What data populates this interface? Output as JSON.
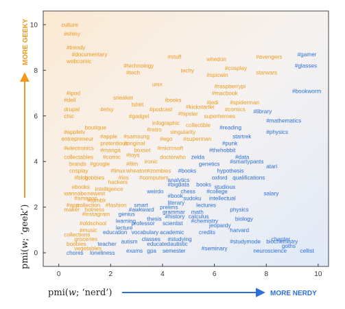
{
  "chart_data": {
    "type": "scatter",
    "xlabel_parts": [
      "pmi(",
      "w",
      "; ‘nerd’)"
    ],
    "ylabel_parts": [
      "pmi(",
      "w",
      "; ‘geek’)"
    ],
    "x_direction_label": "MORE NERDY",
    "y_direction_label": "MORE GEEKY",
    "xlim": [
      -0.6,
      10.4
    ],
    "ylim": [
      -0.6,
      10.6
    ],
    "x_ticks": [
      0,
      2,
      4,
      6,
      8,
      10
    ],
    "y_ticks": [
      0,
      2,
      4,
      6,
      8,
      10
    ],
    "grid": false,
    "colors": {
      "geeky": "#ef9a1d",
      "nerdy": "#2a6fdb",
      "axis": "#333333"
    },
    "points": [
      {
        "text": "culture",
        "x": 0.1,
        "y": 10.0,
        "group": "geeky"
      },
      {
        "text": "#shiny",
        "x": 0.2,
        "y": 9.6,
        "group": "geeky"
      },
      {
        "text": "#trendy",
        "x": 0.3,
        "y": 9.0,
        "group": "geeky"
      },
      {
        "text": "#documentary",
        "x": 0.5,
        "y": 8.7,
        "group": "geeky"
      },
      {
        "text": "webcomic",
        "x": 0.3,
        "y": 8.4,
        "group": "geeky"
      },
      {
        "text": "#technology",
        "x": 2.5,
        "y": 8.2,
        "group": "geeky"
      },
      {
        "text": "#tech",
        "x": 2.6,
        "y": 7.9,
        "group": "geeky"
      },
      {
        "text": "#stuff",
        "x": 4.2,
        "y": 8.6,
        "group": "geeky"
      },
      {
        "text": "whedon",
        "x": 5.7,
        "y": 8.5,
        "group": "geeky"
      },
      {
        "text": "#avengers",
        "x": 7.6,
        "y": 8.6,
        "group": "geeky"
      },
      {
        "text": "#gamer",
        "x": 9.2,
        "y": 8.7,
        "group": "nerdy"
      },
      {
        "text": "#glasses",
        "x": 9.1,
        "y": 8.2,
        "group": "nerdy"
      },
      {
        "text": "techy",
        "x": 4.7,
        "y": 8.0,
        "group": "geeky"
      },
      {
        "text": "#cosplay",
        "x": 6.4,
        "y": 8.1,
        "group": "geeky"
      },
      {
        "text": "#spicwin",
        "x": 5.7,
        "y": 7.8,
        "group": "geeky"
      },
      {
        "text": "starwars",
        "x": 7.6,
        "y": 7.9,
        "group": "geeky"
      },
      {
        "text": "unix",
        "x": 3.6,
        "y": 7.4,
        "group": "geeky"
      },
      {
        "text": "#raspberrypi",
        "x": 6.0,
        "y": 7.3,
        "group": "geeky"
      },
      {
        "text": "#macbook",
        "x": 5.9,
        "y": 7.0,
        "group": "geeky"
      },
      {
        "text": "#bookworm",
        "x": 9.0,
        "y": 7.1,
        "group": "nerdy"
      },
      {
        "text": "#ipod",
        "x": 0.3,
        "y": 7.0,
        "group": "geeky"
      },
      {
        "text": "#dell",
        "x": 0.2,
        "y": 6.7,
        "group": "geeky"
      },
      {
        "text": "sneaker",
        "x": 2.1,
        "y": 6.8,
        "group": "geeky"
      },
      {
        "text": "ibooks",
        "x": 4.1,
        "y": 6.7,
        "group": "geeky"
      },
      {
        "text": "tshirt",
        "x": 2.8,
        "y": 6.5,
        "group": "geeky"
      },
      {
        "text": "#jedi",
        "x": 5.7,
        "y": 6.6,
        "group": "geeky"
      },
      {
        "text": "#spiderman",
        "x": 6.6,
        "y": 6.6,
        "group": "geeky"
      },
      {
        "text": "drupal",
        "x": 0.2,
        "y": 6.3,
        "group": "geeky"
      },
      {
        "text": "#etsy",
        "x": 1.6,
        "y": 6.3,
        "group": "geeky"
      },
      {
        "text": "#podcast",
        "x": 3.5,
        "y": 6.3,
        "group": "geeky"
      },
      {
        "text": "#kickstarter",
        "x": 4.9,
        "y": 6.4,
        "group": "geeky"
      },
      {
        "text": "#comics",
        "x": 6.4,
        "y": 6.3,
        "group": "geeky"
      },
      {
        "text": "#library",
        "x": 7.5,
        "y": 6.2,
        "group": "nerdy"
      },
      {
        "text": "chic",
        "x": 0.2,
        "y": 6.0,
        "group": "geeky"
      },
      {
        "text": "#gadget",
        "x": 2.7,
        "y": 6.0,
        "group": "geeky"
      },
      {
        "text": "#hipster",
        "x": 4.6,
        "y": 6.1,
        "group": "geeky"
      },
      {
        "text": "superheroes",
        "x": 5.6,
        "y": 6.0,
        "group": "geeky"
      },
      {
        "text": "#mathematics",
        "x": 8.0,
        "y": 5.8,
        "group": "nerdy"
      },
      {
        "text": "infographic",
        "x": 3.6,
        "y": 5.7,
        "group": "geeky"
      },
      {
        "text": "collectible",
        "x": 4.9,
        "y": 5.6,
        "group": "geeky"
      },
      {
        "text": "boutique",
        "x": 1.0,
        "y": 5.5,
        "group": "geeky"
      },
      {
        "text": "#retro",
        "x": 3.4,
        "y": 5.4,
        "group": "geeky"
      },
      {
        "text": "singularity",
        "x": 4.3,
        "y": 5.3,
        "group": "geeky"
      },
      {
        "text": "#reading",
        "x": 6.2,
        "y": 5.5,
        "group": "nerdy"
      },
      {
        "text": "#appletv",
        "x": 0.2,
        "y": 5.3,
        "group": "geeky"
      },
      {
        "text": "#physics",
        "x": 8.0,
        "y": 5.3,
        "group": "nerdy"
      },
      {
        "text": "startrek",
        "x": 6.7,
        "y": 5.1,
        "group": "nerdy"
      },
      {
        "text": "entrepreneur",
        "x": 0.1,
        "y": 5.0,
        "group": "geeky"
      },
      {
        "text": "#apple",
        "x": 1.6,
        "y": 5.1,
        "group": "geeky"
      },
      {
        "text": "#samsung",
        "x": 2.5,
        "y": 5.1,
        "group": "geeky"
      },
      {
        "text": "#ego",
        "x": 3.9,
        "y": 5.0,
        "group": "geeky"
      },
      {
        "text": "#superman",
        "x": 4.8,
        "y": 5.0,
        "group": "geeky"
      },
      {
        "text": "pretentious",
        "x": 1.6,
        "y": 4.8,
        "group": "geeky"
      },
      {
        "text": "#original",
        "x": 2.5,
        "y": 4.8,
        "group": "geeky"
      },
      {
        "text": "#punk",
        "x": 6.3,
        "y": 4.8,
        "group": "nerdy"
      },
      {
        "text": "#electronics",
        "x": 0.2,
        "y": 4.6,
        "group": "geeky"
      },
      {
        "text": "#manga",
        "x": 1.6,
        "y": 4.5,
        "group": "geeky"
      },
      {
        "text": "boxset",
        "x": 2.9,
        "y": 4.5,
        "group": "geeky"
      },
      {
        "text": "#microsoft",
        "x": 3.8,
        "y": 4.6,
        "group": "geeky"
      },
      {
        "text": "#thehobbit",
        "x": 5.8,
        "y": 4.5,
        "group": "nerdy"
      },
      {
        "text": "collectables",
        "x": 0.2,
        "y": 4.2,
        "group": "geeky"
      },
      {
        "text": "#comic",
        "x": 1.7,
        "y": 4.2,
        "group": "geeky"
      },
      {
        "text": "#toys",
        "x": 2.6,
        "y": 4.3,
        "group": "geeky"
      },
      {
        "text": "zelda",
        "x": 5.1,
        "y": 4.2,
        "group": "nerdy"
      },
      {
        "text": "#data",
        "x": 6.8,
        "y": 4.2,
        "group": "nerdy"
      },
      {
        "text": "brands",
        "x": 0.4,
        "y": 3.9,
        "group": "geeky"
      },
      {
        "text": "#google",
        "x": 1.2,
        "y": 3.9,
        "group": "geeky"
      },
      {
        "text": "ironic",
        "x": 3.3,
        "y": 4.0,
        "group": "geeky"
      },
      {
        "text": "doctorwho",
        "x": 3.9,
        "y": 4.2,
        "group": "geeky"
      },
      {
        "text": "genetics",
        "x": 5.4,
        "y": 3.9,
        "group": "nerdy"
      },
      {
        "text": "#smartypants",
        "x": 6.6,
        "y": 4.0,
        "group": "nerdy"
      },
      {
        "text": "atari",
        "x": 8.0,
        "y": 3.8,
        "group": "nerdy"
      },
      {
        "text": "#film",
        "x": 2.6,
        "y": 3.9,
        "group": "geeky"
      },
      {
        "text": "cosplay",
        "x": 0.4,
        "y": 3.6,
        "group": "geeky"
      },
      {
        "text": "#linux",
        "x": 2.0,
        "y": 3.6,
        "group": "geeky"
      },
      {
        "text": "wheaton",
        "x": 2.6,
        "y": 3.6,
        "group": "geeky"
      },
      {
        "text": "#zombies",
        "x": 3.4,
        "y": 3.6,
        "group": "geeky"
      },
      {
        "text": "#books",
        "x": 4.6,
        "y": 3.6,
        "group": "nerdy"
      },
      {
        "text": "hypothesis",
        "x": 6.1,
        "y": 3.6,
        "group": "nerdy"
      },
      {
        "text": "#blog",
        "x": 0.6,
        "y": 3.3,
        "group": "geeky"
      },
      {
        "text": "hobbies",
        "x": 1.0,
        "y": 3.3,
        "group": "geeky"
      },
      {
        "text": "#ios",
        "x": 2.3,
        "y": 3.3,
        "group": "geeky"
      },
      {
        "text": "#computers",
        "x": 3.1,
        "y": 3.3,
        "group": "geeky"
      },
      {
        "text": "analytics",
        "x": 4.2,
        "y": 3.2,
        "group": "nerdy"
      },
      {
        "text": "oxford",
        "x": 5.9,
        "y": 3.3,
        "group": "nerdy"
      },
      {
        "text": "qualifications",
        "x": 6.7,
        "y": 3.3,
        "group": "nerdy"
      },
      {
        "text": "hackers",
        "x": 1.9,
        "y": 3.1,
        "group": "geeky"
      },
      {
        "text": "ebooks",
        "x": 0.5,
        "y": 2.9,
        "group": "geeky"
      },
      {
        "text": "intelligence",
        "x": 1.4,
        "y": 2.8,
        "group": "geeky"
      },
      {
        "text": "#bigdata",
        "x": 4.2,
        "y": 3.0,
        "group": "nerdy"
      },
      {
        "text": "books",
        "x": 5.3,
        "y": 3.0,
        "group": "nerdy"
      },
      {
        "text": "studious",
        "x": 6.0,
        "y": 2.9,
        "group": "nerdy"
      },
      {
        "text": "wannabe",
        "x": 0.2,
        "y": 2.6,
        "group": "geeky"
      },
      {
        "text": "newest",
        "x": 1.1,
        "y": 2.6,
        "group": "geeky"
      },
      {
        "text": "weirdo",
        "x": 3.4,
        "y": 2.7,
        "group": "nerdy"
      },
      {
        "text": "chess",
        "x": 4.7,
        "y": 2.7,
        "group": "nerdy"
      },
      {
        "text": "#college",
        "x": 5.7,
        "y": 2.7,
        "group": "nerdy"
      },
      {
        "text": "salary",
        "x": 7.9,
        "y": 2.6,
        "group": "nerdy"
      },
      {
        "text": "#amazon",
        "x": 0.6,
        "y": 2.4,
        "group": "geeky"
      },
      {
        "text": "#tumblr",
        "x": 1.1,
        "y": 2.3,
        "group": "geeky"
      },
      {
        "text": "#book",
        "x": 4.2,
        "y": 2.5,
        "group": "nerdy"
      },
      {
        "text": "sudoku",
        "x": 4.8,
        "y": 2.4,
        "group": "nerdy"
      },
      {
        "text": "intellectual",
        "x": 5.8,
        "y": 2.4,
        "group": "nerdy"
      },
      {
        "text": "#app",
        "x": 0.3,
        "y": 2.1,
        "group": "geeky"
      },
      {
        "text": "collection",
        "x": 0.7,
        "y": 2.1,
        "group": "geeky"
      },
      {
        "text": "#fashion",
        "x": 1.8,
        "y": 2.1,
        "group": "geeky"
      },
      {
        "text": "smart",
        "x": 2.9,
        "y": 2.1,
        "group": "nerdy"
      },
      {
        "text": "literary",
        "x": 4.2,
        "y": 2.2,
        "group": "nerdy"
      },
      {
        "text": "lectures",
        "x": 5.3,
        "y": 2.1,
        "group": "nerdy"
      },
      {
        "text": "maker",
        "x": 0.2,
        "y": 1.9,
        "group": "geeky"
      },
      {
        "text": "hotness",
        "x": 1.0,
        "y": 1.9,
        "group": "geeky"
      },
      {
        "text": "#awkward",
        "x": 2.7,
        "y": 1.9,
        "group": "nerdy"
      },
      {
        "text": "prelims",
        "x": 3.9,
        "y": 2.0,
        "group": "nerdy"
      },
      {
        "text": "grammar",
        "x": 4.0,
        "y": 1.8,
        "group": "nerdy"
      },
      {
        "text": "math",
        "x": 5.1,
        "y": 1.8,
        "group": "nerdy"
      },
      {
        "text": "physics",
        "x": 6.6,
        "y": 1.9,
        "group": "nerdy"
      },
      {
        "text": "#instagram",
        "x": 0.9,
        "y": 1.7,
        "group": "geeky"
      },
      {
        "text": "genius",
        "x": 2.3,
        "y": 1.7,
        "group": "nerdy"
      },
      {
        "text": "#history",
        "x": 4.1,
        "y": 1.6,
        "group": "nerdy"
      },
      {
        "text": "calculus",
        "x": 5.0,
        "y": 1.6,
        "group": "nerdy"
      },
      {
        "text": "thesis",
        "x": 3.4,
        "y": 1.5,
        "group": "nerdy"
      },
      {
        "text": "learning",
        "x": 2.2,
        "y": 1.4,
        "group": "nerdy"
      },
      {
        "text": "#chemistry",
        "x": 5.1,
        "y": 1.4,
        "group": "nerdy"
      },
      {
        "text": "biology",
        "x": 6.8,
        "y": 1.5,
        "group": "nerdy"
      },
      {
        "text": "#oldschool",
        "x": 0.8,
        "y": 1.3,
        "group": "geeky"
      },
      {
        "text": "professor",
        "x": 2.8,
        "y": 1.3,
        "group": "nerdy"
      },
      {
        "text": "scientist",
        "x": 4.0,
        "y": 1.3,
        "group": "nerdy"
      },
      {
        "text": "jeopardy",
        "x": 5.8,
        "y": 1.2,
        "group": "nerdy"
      },
      {
        "text": "#music",
        "x": 0.8,
        "y": 1.0,
        "group": "geeky"
      },
      {
        "text": "lecture",
        "x": 2.2,
        "y": 1.1,
        "group": "nerdy"
      },
      {
        "text": "harvard",
        "x": 6.6,
        "y": 1.0,
        "group": "nerdy"
      },
      {
        "text": "education",
        "x": 1.7,
        "y": 0.9,
        "group": "nerdy"
      },
      {
        "text": "vocabulary",
        "x": 2.8,
        "y": 0.9,
        "group": "nerdy"
      },
      {
        "text": "academic",
        "x": 3.9,
        "y": 0.9,
        "group": "nerdy"
      },
      {
        "text": "credits",
        "x": 5.4,
        "y": 0.9,
        "group": "nerdy"
      },
      {
        "text": "collections",
        "x": 0.2,
        "y": 0.8,
        "group": "geeky"
      },
      {
        "text": "#studying",
        "x": 4.2,
        "y": 0.6,
        "group": "nerdy"
      },
      {
        "text": "groceries",
        "x": 0.6,
        "y": 0.6,
        "group": "geeky"
      },
      {
        "text": "classes",
        "x": 3.2,
        "y": 0.6,
        "group": "nerdy"
      },
      {
        "text": "chapter",
        "x": 8.2,
        "y": 0.6,
        "group": "nerdy"
      },
      {
        "text": "boobies",
        "x": 0.3,
        "y": 0.4,
        "group": "geeky"
      },
      {
        "text": "teacher",
        "x": 1.5,
        "y": 0.4,
        "group": "nerdy"
      },
      {
        "text": "autism",
        "x": 2.4,
        "y": 0.5,
        "group": "nerdy"
      },
      {
        "text": "educated",
        "x": 3.4,
        "y": 0.4,
        "group": "nerdy"
      },
      {
        "text": "autistic",
        "x": 4.3,
        "y": 0.4,
        "group": "nerdy"
      },
      {
        "text": "#studymode",
        "x": 6.6,
        "y": 0.5,
        "group": "nerdy"
      },
      {
        "text": "biochemistry",
        "x": 8.0,
        "y": 0.5,
        "group": "nerdy"
      },
      {
        "text": "vegetables",
        "x": 0.6,
        "y": 0.2,
        "group": "geeky"
      },
      {
        "text": "goths",
        "x": 8.6,
        "y": 0.3,
        "group": "nerdy"
      },
      {
        "text": "chores",
        "x": 0.3,
        "y": 0.0,
        "group": "nerdy"
      },
      {
        "text": "loneliness",
        "x": 1.2,
        "y": 0.0,
        "group": "nerdy"
      },
      {
        "text": "exams",
        "x": 2.6,
        "y": 0.1,
        "group": "nerdy"
      },
      {
        "text": "gpa",
        "x": 3.4,
        "y": 0.1,
        "group": "nerdy"
      },
      {
        "text": "semester",
        "x": 4.0,
        "y": 0.1,
        "group": "nerdy"
      },
      {
        "text": "#seminary",
        "x": 5.5,
        "y": 0.2,
        "group": "nerdy"
      },
      {
        "text": "neuroscience",
        "x": 7.5,
        "y": 0.1,
        "group": "nerdy"
      },
      {
        "text": "cellist",
        "x": 9.3,
        "y": 0.1,
        "group": "nerdy"
      }
    ]
  }
}
